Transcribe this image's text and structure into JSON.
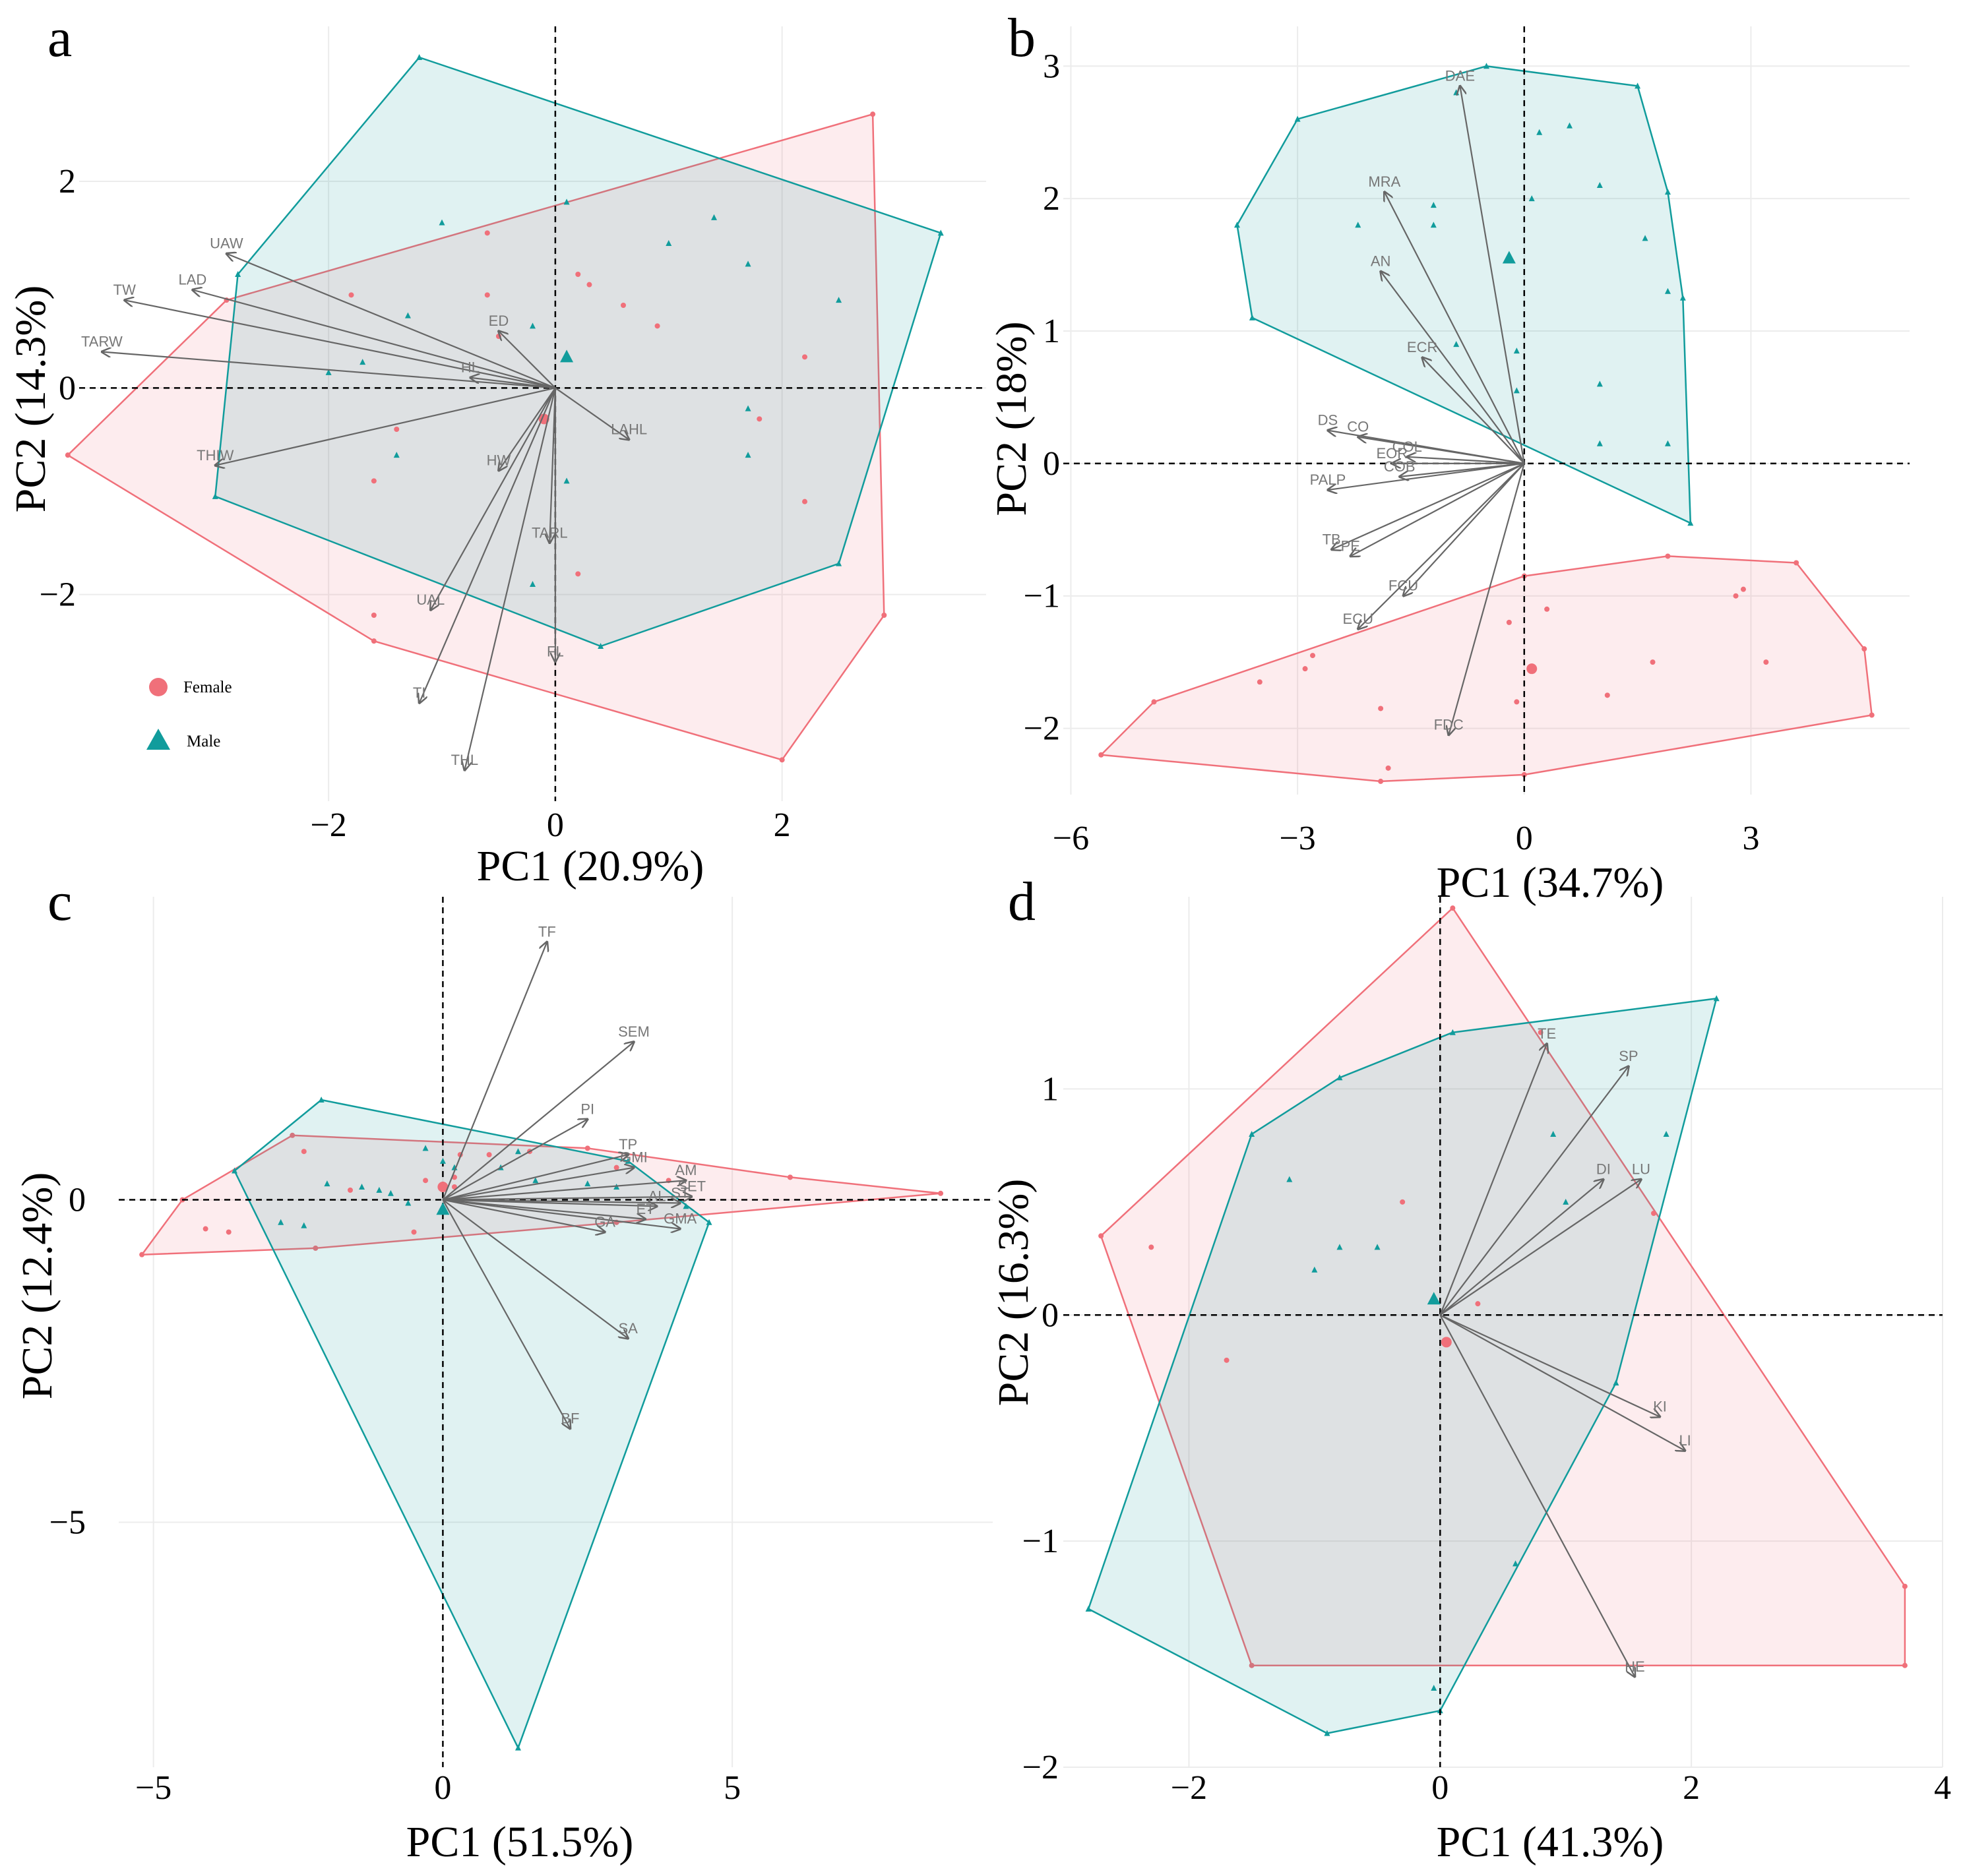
{
  "figure": {
    "colors": {
      "female": "#F0707A",
      "male": "#119C9C",
      "arrow": "#666666",
      "label": "#777777"
    },
    "legend": {
      "female_label": "Female",
      "male_label": "Male"
    }
  },
  "chart_data": [
    {
      "type": "scatter",
      "panel": "a",
      "xlabel": "PC1 (20.9%)",
      "ylabel": "PC2 (14.3%)",
      "xlim": [
        -4.2,
        3.8
      ],
      "ylim": [
        -4.0,
        3.5
      ],
      "xticks": [
        -2,
        0,
        2
      ],
      "xtick_labels": [
        "−2",
        "0",
        "2"
      ],
      "yticks": [
        -2,
        0,
        2
      ],
      "ytick_labels": [
        "−2",
        "0",
        "2"
      ],
      "legend": true,
      "series": [
        {
          "name": "Female",
          "hull": [
            [
              -4.3,
              -0.65
            ],
            [
              -2.9,
              0.85
            ],
            [
              2.8,
              2.65
            ],
            [
              2.9,
              -2.2
            ],
            [
              2.0,
              -3.6
            ],
            [
              -1.6,
              -2.45
            ]
          ],
          "points": [
            [
              -1.8,
              0.9
            ],
            [
              -1.4,
              -0.4
            ],
            [
              -1.6,
              -0.9
            ],
            [
              -0.6,
              0.9
            ],
            [
              -0.5,
              0.5
            ],
            [
              -0.1,
              -0.3
            ],
            [
              0.2,
              1.1
            ],
            [
              0.3,
              1.0
            ],
            [
              0.6,
              0.8
            ],
            [
              0.9,
              0.6
            ],
            [
              0.2,
              -1.8
            ],
            [
              -1.6,
              -2.2
            ],
            [
              1.8,
              -0.3
            ],
            [
              2.2,
              0.3
            ],
            [
              2.2,
              -1.1
            ],
            [
              -0.6,
              1.5
            ]
          ],
          "centroid": [
            -0.1,
            -0.3
          ]
        },
        {
          "name": "Male",
          "hull": [
            [
              -1.2,
              3.2
            ],
            [
              3.4,
              1.5
            ],
            [
              2.5,
              -1.7
            ],
            [
              0.4,
              -2.5
            ],
            [
              -3.0,
              -1.05
            ],
            [
              -2.8,
              1.1
            ]
          ],
          "points": [
            [
              -1.0,
              1.6
            ],
            [
              -1.3,
              0.7
            ],
            [
              -2.0,
              0.15
            ],
            [
              -1.7,
              0.25
            ],
            [
              0.1,
              1.8
            ],
            [
              1.0,
              1.4
            ],
            [
              1.4,
              1.65
            ],
            [
              1.7,
              1.2
            ],
            [
              1.7,
              -0.2
            ],
            [
              1.7,
              -0.65
            ],
            [
              2.5,
              0.85
            ],
            [
              0.1,
              -0.9
            ],
            [
              -0.2,
              -1.9
            ],
            [
              -1.4,
              -0.65
            ],
            [
              -0.2,
              0.6
            ]
          ],
          "centroid": [
            0.1,
            0.3
          ]
        }
      ],
      "loadings": [
        {
          "name": "UAW",
          "x": -2.9,
          "y": 1.3
        },
        {
          "name": "LAD",
          "x": -3.2,
          "y": 0.95
        },
        {
          "name": "TW",
          "x": -3.8,
          "y": 0.85
        },
        {
          "name": "TARW",
          "x": -4.0,
          "y": 0.35
        },
        {
          "name": "ED",
          "x": -0.5,
          "y": 0.55
        },
        {
          "name": "HL",
          "x": -0.75,
          "y": 0.1
        },
        {
          "name": "LAHL",
          "x": 0.65,
          "y": -0.5
        },
        {
          "name": "THIW",
          "x": -3.0,
          "y": -0.75
        },
        {
          "name": "HW",
          "x": -0.5,
          "y": -0.8
        },
        {
          "name": "TARL",
          "x": -0.05,
          "y": -1.5
        },
        {
          "name": "UAL",
          "x": -1.1,
          "y": -2.15
        },
        {
          "name": "FL",
          "x": 0.0,
          "y": -2.65
        },
        {
          "name": "TI",
          "x": -1.2,
          "y": -3.05
        },
        {
          "name": "THL",
          "x": -0.8,
          "y": -3.7
        }
      ]
    },
    {
      "type": "scatter",
      "panel": "b",
      "xlabel": "PC1 (34.7%)",
      "ylabel": "PC2 (18%)",
      "xlim": [
        -6.1,
        5.1
      ],
      "ylim": [
        -2.5,
        3.3
      ],
      "xticks": [
        -6,
        -3,
        0,
        3
      ],
      "xtick_labels": [
        "−6",
        "−3",
        "0",
        "3"
      ],
      "yticks": [
        -2,
        -1,
        0,
        1,
        2,
        3
      ],
      "ytick_labels": [
        "−2",
        "−1",
        "0",
        "1",
        "2",
        "3"
      ],
      "legend": false,
      "series": [
        {
          "name": "Female",
          "hull": [
            [
              -5.6,
              -2.2
            ],
            [
              -4.9,
              -1.8
            ],
            [
              0.0,
              -0.85
            ],
            [
              1.9,
              -0.7
            ],
            [
              3.6,
              -0.75
            ],
            [
              4.5,
              -1.4
            ],
            [
              4.6,
              -1.9
            ],
            [
              0.0,
              -2.35
            ],
            [
              -1.9,
              -2.4
            ]
          ],
          "points": [
            [
              -3.5,
              -1.65
            ],
            [
              -2.9,
              -1.55
            ],
            [
              -2.8,
              -1.45
            ],
            [
              -1.9,
              -1.85
            ],
            [
              -1.8,
              -2.3
            ],
            [
              -0.2,
              -1.2
            ],
            [
              0.3,
              -1.1
            ],
            [
              1.1,
              -1.75
            ],
            [
              1.7,
              -1.5
            ],
            [
              2.8,
              -1.0
            ],
            [
              2.9,
              -0.95
            ],
            [
              3.2,
              -1.5
            ],
            [
              -0.1,
              -1.8
            ]
          ],
          "centroid": [
            0.1,
            -1.55
          ]
        },
        {
          "name": "Male",
          "hull": [
            [
              -3.0,
              2.6
            ],
            [
              -0.5,
              3.0
            ],
            [
              1.5,
              2.85
            ],
            [
              1.9,
              2.05
            ],
            [
              2.1,
              1.25
            ],
            [
              2.2,
              -0.45
            ],
            [
              -3.6,
              1.1
            ],
            [
              -3.8,
              1.8
            ]
          ],
          "points": [
            [
              -0.9,
              2.8
            ],
            [
              0.2,
              2.5
            ],
            [
              0.6,
              2.55
            ],
            [
              0.1,
              2.0
            ],
            [
              -1.2,
              1.95
            ],
            [
              -1.2,
              1.8
            ],
            [
              -2.2,
              1.8
            ],
            [
              1.0,
              2.1
            ],
            [
              1.6,
              1.7
            ],
            [
              1.9,
              1.3
            ],
            [
              -0.9,
              0.9
            ],
            [
              -0.1,
              0.85
            ],
            [
              1.0,
              0.6
            ],
            [
              -0.1,
              0.55
            ],
            [
              1.0,
              0.15
            ],
            [
              1.9,
              0.15
            ]
          ],
          "centroid": [
            -0.2,
            1.55
          ]
        }
      ],
      "loadings": [
        {
          "name": "DAE",
          "x": -0.85,
          "y": 2.85
        },
        {
          "name": "MRA",
          "x": -1.85,
          "y": 2.05
        },
        {
          "name": "AN",
          "x": -1.9,
          "y": 1.45
        },
        {
          "name": "ECR",
          "x": -1.35,
          "y": 0.8
        },
        {
          "name": "DS",
          "x": -2.6,
          "y": 0.25
        },
        {
          "name": "CO",
          "x": -2.2,
          "y": 0.2
        },
        {
          "name": "COL",
          "x": -1.55,
          "y": 0.05
        },
        {
          "name": "EOR",
          "x": -1.75,
          "y": 0.0
        },
        {
          "name": "COB",
          "x": -1.65,
          "y": -0.1
        },
        {
          "name": "PALP",
          "x": -2.6,
          "y": -0.2
        },
        {
          "name": "TB",
          "x": -2.55,
          "y": -0.65
        },
        {
          "name": "PE",
          "x": -2.3,
          "y": -0.7
        },
        {
          "name": "FCU",
          "x": -1.6,
          "y": -1.0
        },
        {
          "name": "ECU",
          "x": -2.2,
          "y": -1.25
        },
        {
          "name": "FDC",
          "x": -1.0,
          "y": -2.05
        }
      ]
    },
    {
      "type": "scatter",
      "panel": "c",
      "xlabel": "PC1 (51.5%)",
      "ylabel": "PC2 (12.4%)",
      "xlim": [
        -5.6,
        9.5
      ],
      "ylim": [
        -8.8,
        4.7
      ],
      "xticks": [
        -5,
        0,
        5
      ],
      "xtick_labels": [
        "−5",
        "0",
        "5"
      ],
      "yticks": [
        -5,
        0
      ],
      "ytick_labels": [
        "−5",
        "0"
      ],
      "legend": false,
      "series": [
        {
          "name": "Female",
          "hull": [
            [
              -5.2,
              -0.85
            ],
            [
              -4.5,
              0.0
            ],
            [
              -2.6,
              1.0
            ],
            [
              2.5,
              0.8
            ],
            [
              6.0,
              0.35
            ],
            [
              8.6,
              0.1
            ],
            [
              3.0,
              -0.35
            ],
            [
              -2.2,
              -0.75
            ]
          ],
          "points": [
            [
              -4.1,
              -0.45
            ],
            [
              -3.7,
              -0.5
            ],
            [
              -2.4,
              0.75
            ],
            [
              0.2,
              0.2
            ],
            [
              0.2,
              0.35
            ],
            [
              0.3,
              0.7
            ],
            [
              0.8,
              0.7
            ],
            [
              1.5,
              0.75
            ],
            [
              3.0,
              0.5
            ],
            [
              3.9,
              0.3
            ],
            [
              6.0,
              0.35
            ],
            [
              -1.6,
              0.15
            ],
            [
              -0.3,
              0.3
            ],
            [
              -0.5,
              -0.5
            ]
          ],
          "centroid": [
            0.0,
            0.2
          ]
        },
        {
          "name": "Male",
          "hull": [
            [
              -3.6,
              0.45
            ],
            [
              -2.1,
              1.55
            ],
            [
              3.2,
              0.6
            ],
            [
              4.6,
              -0.35
            ],
            [
              1.3,
              -8.5
            ]
          ],
          "points": [
            [
              -2.0,
              0.25
            ],
            [
              -2.8,
              -0.35
            ],
            [
              -2.4,
              -0.4
            ],
            [
              -1.4,
              0.2
            ],
            [
              -1.1,
              0.15
            ],
            [
              -0.9,
              0.1
            ],
            [
              -0.6,
              -0.05
            ],
            [
              -0.3,
              0.8
            ],
            [
              0.0,
              0.6
            ],
            [
              0.2,
              0.5
            ],
            [
              1.0,
              0.5
            ],
            [
              1.3,
              0.75
            ],
            [
              1.6,
              0.3
            ],
            [
              2.5,
              0.25
            ],
            [
              3.0,
              0.2
            ],
            [
              4.2,
              -0.1
            ]
          ],
          "centroid": [
            0.0,
            -0.15
          ]
        }
      ],
      "loadings": [
        {
          "name": "TF",
          "x": 1.8,
          "y": 4.0
        },
        {
          "name": "SEM",
          "x": 3.3,
          "y": 2.45
        },
        {
          "name": "PI",
          "x": 2.5,
          "y": 1.25
        },
        {
          "name": "TP",
          "x": 3.2,
          "y": 0.7
        },
        {
          "name": "GMI",
          "x": 3.3,
          "y": 0.5
        },
        {
          "name": "AM",
          "x": 4.2,
          "y": 0.3
        },
        {
          "name": "SET",
          "x": 4.3,
          "y": 0.05
        },
        {
          "name": "ST",
          "x": 4.1,
          "y": -0.05
        },
        {
          "name": "AL",
          "x": 3.7,
          "y": -0.1
        },
        {
          "name": "ET",
          "x": 3.5,
          "y": -0.3
        },
        {
          "name": "GMA",
          "x": 4.1,
          "y": -0.45
        },
        {
          "name": "GA",
          "x": 2.8,
          "y": -0.5
        },
        {
          "name": "SA",
          "x": 3.2,
          "y": -2.15
        },
        {
          "name": "BF",
          "x": 2.2,
          "y": -3.55
        }
      ]
    },
    {
      "type": "scatter",
      "panel": "d",
      "xlabel": "PC1 (41.3%)",
      "ylabel": "PC2 (16.3%)",
      "xlim": [
        -3.0,
        4.0
      ],
      "ylim": [
        -2.0,
        1.85
      ],
      "xticks": [
        -2,
        0,
        2,
        4
      ],
      "xtick_labels": [
        "−2",
        "0",
        "2",
        "4"
      ],
      "yticks": [
        -2,
        -1,
        0,
        1
      ],
      "ytick_labels": [
        "−2",
        "−1",
        "0",
        "1"
      ],
      "legend": false,
      "series": [
        {
          "name": "Female",
          "hull": [
            [
              -2.7,
              0.35
            ],
            [
              0.1,
              1.8
            ],
            [
              3.7,
              -1.2
            ],
            [
              3.7,
              -1.55
            ],
            [
              -1.5,
              -1.55
            ]
          ],
          "points": [
            [
              -2.3,
              0.3
            ],
            [
              -1.7,
              -0.2
            ],
            [
              -0.3,
              0.5
            ],
            [
              0.8,
              1.25
            ],
            [
              1.7,
              0.45
            ],
            [
              0.3,
              0.05
            ]
          ],
          "centroid": [
            0.05,
            -0.12
          ]
        },
        {
          "name": "Male",
          "hull": [
            [
              -2.8,
              -1.3
            ],
            [
              -0.9,
              -1.85
            ],
            [
              0.0,
              -1.75
            ],
            [
              1.4,
              -0.3
            ],
            [
              2.2,
              1.4
            ],
            [
              0.1,
              1.25
            ],
            [
              -0.8,
              1.05
            ],
            [
              -1.5,
              0.8
            ]
          ],
          "points": [
            [
              -1.2,
              0.6
            ],
            [
              -1.0,
              0.2
            ],
            [
              -0.8,
              0.3
            ],
            [
              -0.5,
              0.3
            ],
            [
              0.9,
              0.8
            ],
            [
              1.0,
              0.5
            ],
            [
              1.8,
              0.8
            ],
            [
              0.6,
              -1.1
            ],
            [
              -0.05,
              -1.65
            ]
          ],
          "centroid": [
            -0.05,
            0.07
          ]
        }
      ],
      "loadings": [
        {
          "name": "TE",
          "x": 0.85,
          "y": 1.2
        },
        {
          "name": "SP",
          "x": 1.5,
          "y": 1.1
        },
        {
          "name": "DI",
          "x": 1.3,
          "y": 0.6
        },
        {
          "name": "LU",
          "x": 1.6,
          "y": 0.6
        },
        {
          "name": "KI",
          "x": 1.75,
          "y": -0.45
        },
        {
          "name": "LI",
          "x": 1.95,
          "y": -0.6
        },
        {
          "name": "HE",
          "x": 1.55,
          "y": -1.6
        }
      ]
    }
  ]
}
